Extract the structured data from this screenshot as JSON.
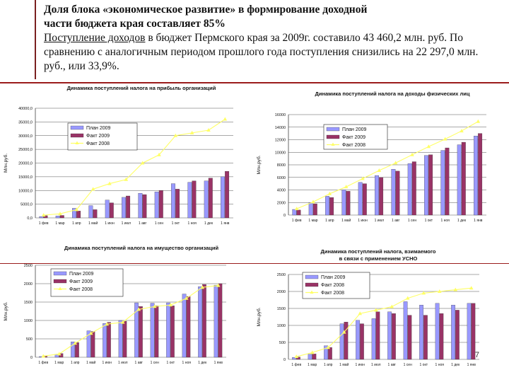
{
  "header": {
    "title_line1": "Доля блока «экономическое развитие» в формирование доходной",
    "title_line2": "части бюджета края составляет 85%",
    "body_underlined": "Поступление доходов",
    "body_rest": " в бюджет Пермского края за 2009г. составило 43 460,2 млн. руб. По сравнению с аналогичным периодом прошлого года поступления снизились на 22 297,0 млн. руб., или 33,9%."
  },
  "page_number": "7",
  "colors": {
    "plan": "#9999ff",
    "fact2009": "#993366",
    "fact2008": "#ffff66"
  },
  "chart_data": [
    {
      "type": "bar",
      "title": "Динамика поступлений налога на прибыль организаций",
      "ylabel": "Млн.руб.",
      "xlabel": "",
      "ylim": [
        0,
        40000
      ],
      "yticks": [
        "0,0",
        "5000,0",
        "10000,0",
        "15000,0",
        "20000,0",
        "25000,0",
        "30000,0",
        "35000,0",
        "40000,0"
      ],
      "categories": [
        "1 фев",
        "1 мар",
        "1 апр",
        "1 май",
        "1 июн",
        "1 июл",
        "1 авг",
        "1 сен",
        "1 окт",
        "1 ноя",
        "1 дек",
        "1 янв"
      ],
      "legend": [
        "План 2009",
        "Факт 2009",
        "Факт 2008"
      ],
      "series": [
        {
          "name": "План 2009",
          "values": [
            500,
            700,
            3500,
            4500,
            6500,
            7500,
            9000,
            9500,
            12500,
            13000,
            13500,
            15000
          ]
        },
        {
          "name": "Факт 2009",
          "values": [
            800,
            900,
            2500,
            3000,
            5500,
            8000,
            8500,
            10000,
            10500,
            13500,
            14500,
            17000
          ]
        },
        {
          "name": "Факт 2008",
          "values": [
            1000,
            1500,
            3000,
            10500,
            12500,
            14000,
            20000,
            23000,
            30000,
            31000,
            32000,
            36000
          ]
        }
      ]
    },
    {
      "type": "bar",
      "title": "Динамика поступлений налога на доходы физических лиц",
      "ylabel": "Млн.руб.",
      "xlabel": "",
      "ylim": [
        0,
        16000
      ],
      "yticks": [
        "0",
        "2000",
        "4000",
        "6000",
        "8000",
        "10000",
        "12000",
        "14000",
        "16000"
      ],
      "categories": [
        "1 фев",
        "1 мар",
        "1 апр",
        "1 май",
        "1 июн",
        "1 июл",
        "1 авг",
        "1 сен",
        "1 окт",
        "1 ноя",
        "1 дек",
        "1 янв"
      ],
      "legend": [
        "План 2009",
        "Факт 2009",
        "Факт 2008"
      ],
      "series": [
        {
          "name": "План 2009",
          "values": [
            900,
            2000,
            3000,
            4000,
            5200,
            6300,
            7300,
            8200,
            9500,
            10300,
            11200,
            12600
          ]
        },
        {
          "name": "Факт 2009",
          "values": [
            800,
            1800,
            2800,
            3800,
            5000,
            6000,
            7000,
            8500,
            9600,
            10700,
            11600,
            13000
          ]
        },
        {
          "name": "Факт 2008",
          "values": [
            1000,
            2100,
            3400,
            4500,
            5800,
            7100,
            8300,
            9600,
            10900,
            12100,
            13400,
            14900
          ]
        }
      ]
    },
    {
      "type": "bar",
      "title": "Динамика поступлений налога на имущество организаций",
      "ylabel": "Млн.руб.",
      "xlabel": "",
      "ylim": [
        0,
        2500
      ],
      "yticks": [
        "0",
        "500",
        "1000",
        "1500",
        "2000",
        "2500"
      ],
      "categories": [
        "1 фев",
        "1 мар",
        "1 апр",
        "1 май",
        "1 июн",
        "1 июл",
        "1 авг",
        "1 сен",
        "1 окт",
        "1 ноя",
        "1 дек",
        "1 янв"
      ],
      "legend": [
        "План 2009",
        "Факт 2009",
        "Факт 2008"
      ],
      "series": [
        {
          "name": "План 2009",
          "values": [
            20,
            80,
            420,
            720,
            920,
            1000,
            1480,
            1470,
            1480,
            1720,
            1920,
            1960
          ]
        },
        {
          "name": "Факт 2009",
          "values": [
            40,
            100,
            400,
            700,
            950,
            980,
            1380,
            1400,
            1400,
            1650,
            1980,
            2000
          ]
        },
        {
          "name": "Факт 2008",
          "values": [
            30,
            90,
            380,
            650,
            900,
            950,
            1300,
            1380,
            1420,
            1600,
            1900,
            1950
          ]
        }
      ]
    },
    {
      "type": "bar",
      "title": "Динамика поступлений налога, взимаемого в связи с применением УСНО",
      "ylabel": "Млн.руб.",
      "xlabel": "",
      "ylim": [
        0,
        2500
      ],
      "yticks": [
        "0",
        "500",
        "1000",
        "1500",
        "2000",
        "2500"
      ],
      "categories": [
        "1 фев",
        "1 мар",
        "1 апр",
        "1 май",
        "1 июн",
        "1 июл",
        "1 авг",
        "1 сен",
        "1 окт",
        "1 ноя",
        "1 дек",
        "1 янв"
      ],
      "legend": [
        "План 2009",
        "Факт 2008",
        "Факт 2008"
      ],
      "series": [
        {
          "name": "План 2009",
          "values": [
            60,
            150,
            400,
            1050,
            1150,
            1200,
            1400,
            1700,
            1600,
            1650,
            1600,
            1650
          ]
        },
        {
          "name": "Факт 2008",
          "values": [
            70,
            160,
            350,
            1100,
            1050,
            1400,
            1350,
            1300,
            1300,
            1350,
            1450,
            1650
          ]
        },
        {
          "name": "Факт 2008",
          "values": [
            80,
            200,
            350,
            800,
            1350,
            1450,
            1550,
            1800,
            1950,
            2000,
            2050,
            2100
          ]
        }
      ]
    }
  ]
}
